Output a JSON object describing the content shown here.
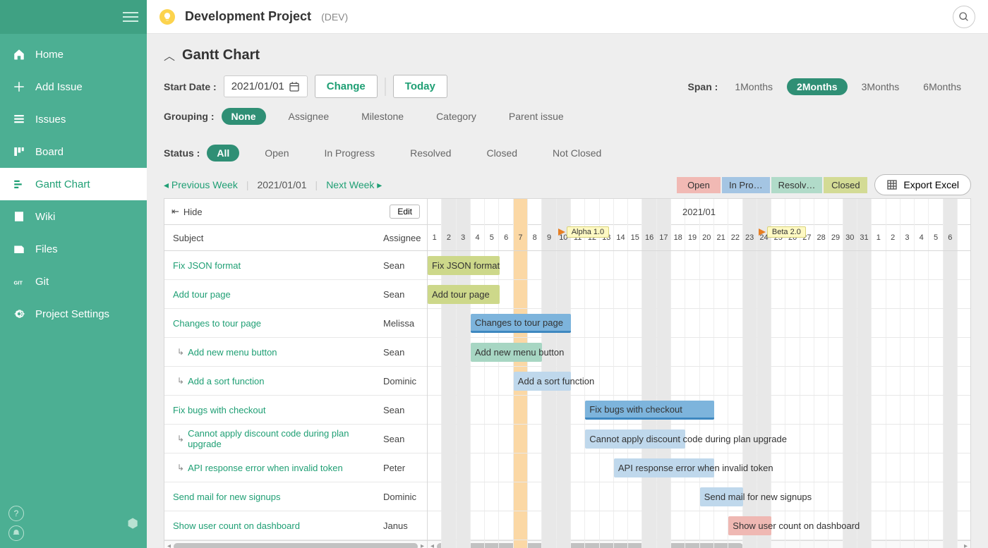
{
  "sidebar": {
    "items": [
      {
        "icon": "home",
        "label": "Home"
      },
      {
        "icon": "plus",
        "label": "Add Issue"
      },
      {
        "icon": "list",
        "label": "Issues"
      },
      {
        "icon": "board",
        "label": "Board"
      },
      {
        "icon": "gantt",
        "label": "Gantt Chart"
      },
      {
        "icon": "wiki",
        "label": "Wiki"
      },
      {
        "icon": "files",
        "label": "Files"
      },
      {
        "icon": "git",
        "label": "Git"
      },
      {
        "icon": "settings",
        "label": "Project Settings"
      }
    ],
    "active_index": 4
  },
  "header": {
    "project_title": "Development Project",
    "project_key": "(DEV)"
  },
  "page_title": "Gantt Chart",
  "toolbar": {
    "start_date_label": "Start Date :",
    "start_date_value": "2021/01/01",
    "change_label": "Change",
    "today_label": "Today",
    "span_label": "Span :",
    "span_options": [
      "1Months",
      "2Months",
      "3Months",
      "6Months"
    ],
    "span_active": 1,
    "grouping_label": "Grouping :",
    "grouping_options": [
      "None",
      "Assignee",
      "Milestone",
      "Category",
      "Parent issue"
    ],
    "grouping_active": 0,
    "status_label": "Status :",
    "status_options": [
      "All",
      "Open",
      "In Progress",
      "Resolved",
      "Closed",
      "Not Closed"
    ],
    "status_active": 0
  },
  "nav_links": {
    "prev": "Previous Week",
    "date": "2021/01/01",
    "next": "Next Week"
  },
  "legend": [
    {
      "label": "Open",
      "color": "#f1b9b4"
    },
    {
      "label": "In Pro…",
      "color": "#a4c5e3"
    },
    {
      "label": "Resolv…",
      "color": "#b1dbc9"
    },
    {
      "label": "Closed",
      "color": "#d3db95"
    }
  ],
  "export_label": "Export Excel",
  "gantt": {
    "hide_label": "Hide",
    "edit_label": "Edit",
    "subject_header": "Subject",
    "assignee_header": "Assignee",
    "month_header": "2021/01",
    "cell_width": 20.3,
    "today_index": 6,
    "milestones": [
      {
        "day_index": 9,
        "label": "Alpha 1.0"
      },
      {
        "day_index": 23,
        "label": "Beta 2.0"
      }
    ],
    "days": [
      {
        "n": "1",
        "wk": false
      },
      {
        "n": "2",
        "wk": true
      },
      {
        "n": "3",
        "wk": true
      },
      {
        "n": "4",
        "wk": false
      },
      {
        "n": "5",
        "wk": false
      },
      {
        "n": "6",
        "wk": false
      },
      {
        "n": "7",
        "wk": false
      },
      {
        "n": "8",
        "wk": false
      },
      {
        "n": "9",
        "wk": true
      },
      {
        "n": "10",
        "wk": true
      },
      {
        "n": "11",
        "wk": false
      },
      {
        "n": "12",
        "wk": false
      },
      {
        "n": "13",
        "wk": false
      },
      {
        "n": "14",
        "wk": false
      },
      {
        "n": "15",
        "wk": false
      },
      {
        "n": "16",
        "wk": true
      },
      {
        "n": "17",
        "wk": true
      },
      {
        "n": "18",
        "wk": false
      },
      {
        "n": "19",
        "wk": false
      },
      {
        "n": "20",
        "wk": false
      },
      {
        "n": "21",
        "wk": false
      },
      {
        "n": "22",
        "wk": false
      },
      {
        "n": "23",
        "wk": true
      },
      {
        "n": "24",
        "wk": true
      },
      {
        "n": "25",
        "wk": false
      },
      {
        "n": "26",
        "wk": false
      },
      {
        "n": "27",
        "wk": false
      },
      {
        "n": "28",
        "wk": false
      },
      {
        "n": "29",
        "wk": false
      },
      {
        "n": "30",
        "wk": true
      },
      {
        "n": "31",
        "wk": true
      },
      {
        "n": "1",
        "wk": false
      },
      {
        "n": "2",
        "wk": false
      },
      {
        "n": "3",
        "wk": false
      },
      {
        "n": "4",
        "wk": false
      },
      {
        "n": "5",
        "wk": false
      },
      {
        "n": "6",
        "wk": true
      }
    ],
    "rows": [
      {
        "subject": "Fix JSON format",
        "assignee": "Sean",
        "child": false,
        "bar": {
          "start": 0,
          "span": 5,
          "style": "olive",
          "label": "Fix JSON format"
        }
      },
      {
        "subject": "Add tour page",
        "assignee": "Sean",
        "child": false,
        "bar": {
          "start": 0,
          "span": 5,
          "style": "olive",
          "label": "Add tour page"
        }
      },
      {
        "subject": "Changes to tour page",
        "assignee": "Melissa",
        "child": false,
        "bar": {
          "start": 3,
          "span": 7,
          "style": "blue-full",
          "label": "Changes to tour page"
        }
      },
      {
        "subject": "Add new menu button",
        "assignee": "Sean",
        "child": true,
        "bar": {
          "start": 3,
          "span": 5,
          "style": "green",
          "label": "Add new menu button"
        }
      },
      {
        "subject": "Add a sort function",
        "assignee": "Dominic",
        "child": true,
        "bar": {
          "start": 6,
          "span": 4,
          "style": "blue",
          "label": "Add a sort function"
        }
      },
      {
        "subject": "Fix bugs with checkout",
        "assignee": "Sean",
        "child": false,
        "bar": {
          "start": 11,
          "span": 9,
          "style": "blue-full",
          "label": "Fix bugs with checkout"
        }
      },
      {
        "subject": "Cannot apply discount code during plan upgrade",
        "assignee": "Sean",
        "child": true,
        "bar": {
          "start": 11,
          "span": 7,
          "style": "blue",
          "label": "Cannot apply discount code during plan upgrade"
        }
      },
      {
        "subject": "API response error when invalid token",
        "assignee": "Peter",
        "child": true,
        "bar": {
          "start": 13,
          "span": 7,
          "style": "blue",
          "label": "API response error when invalid token"
        }
      },
      {
        "subject": "Send mail for new signups",
        "assignee": "Dominic",
        "child": false,
        "bar": {
          "start": 19,
          "span": 3,
          "style": "blue",
          "label": "Send mail for new signups"
        }
      },
      {
        "subject": "Show user count on dashboard",
        "assignee": "Janus",
        "child": false,
        "bar": {
          "start": 21,
          "span": 3,
          "style": "red",
          "label": "Show user count on dashboard"
        }
      }
    ]
  }
}
